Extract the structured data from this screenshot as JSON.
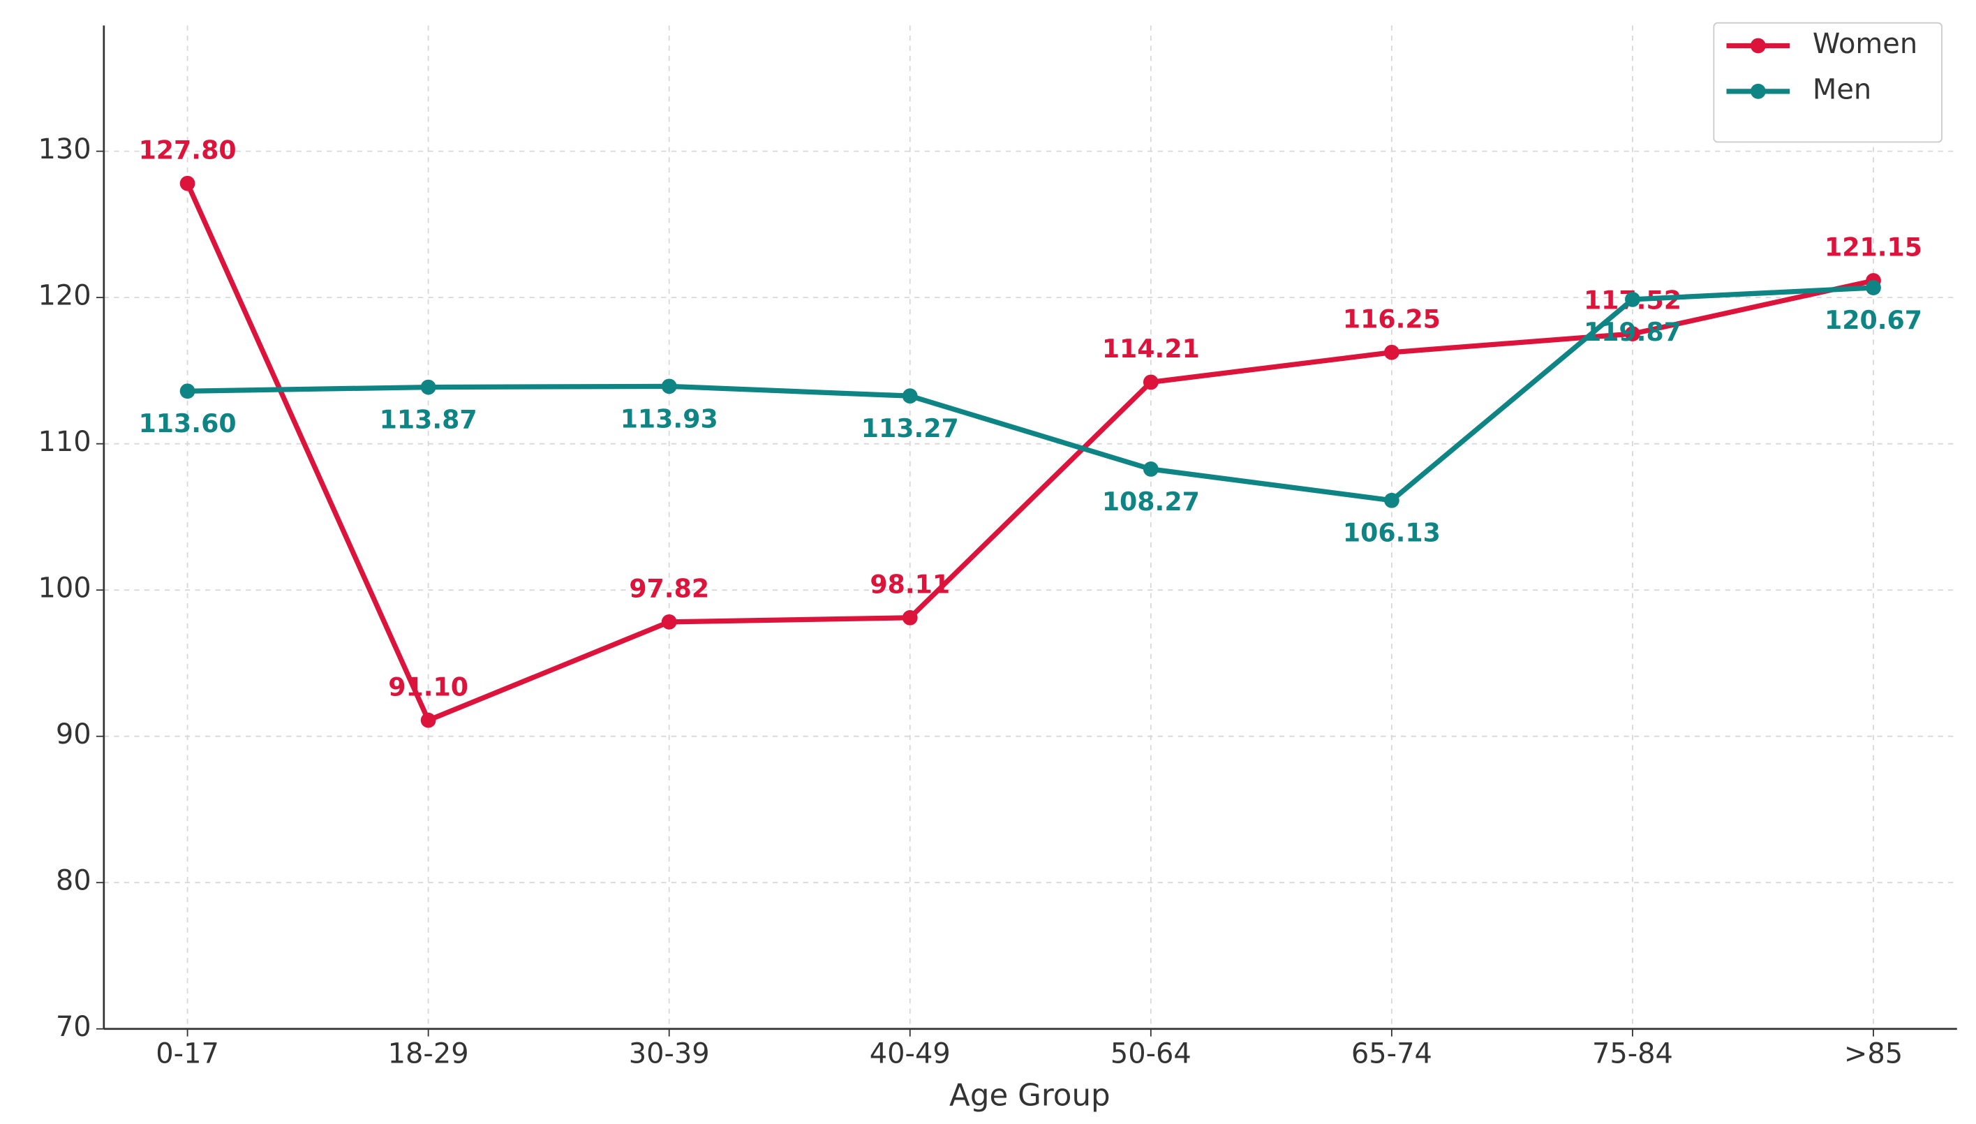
{
  "chart_data": {
    "type": "line",
    "x_label": "Age Group",
    "categories": [
      "0-17",
      "18-29",
      "30-39",
      "40-49",
      "50-64",
      "65-74",
      "75-84",
      ">85"
    ],
    "series": [
      {
        "name": "Women",
        "color": "#dc143c",
        "values": [
          127.8,
          91.1,
          97.82,
          98.11,
          114.21,
          116.25,
          117.52,
          121.15
        ],
        "value_labels": [
          "127.80",
          "91.10",
          "97.82",
          "98.11",
          "114.21",
          "116.25",
          "117.52",
          "121.15"
        ]
      },
      {
        "name": "Men",
        "color": "#0e8584",
        "values": [
          113.6,
          113.87,
          113.93,
          113.27,
          108.27,
          106.13,
          119.87,
          120.67
        ],
        "value_labels": [
          "113.60",
          "113.87",
          "113.93",
          "113.27",
          "108.27",
          "106.13",
          "119.87",
          "120.67"
        ]
      }
    ],
    "ylim": [
      70,
      138.6
    ],
    "yticks": [
      70,
      80,
      90,
      100,
      110,
      120,
      130
    ],
    "grid": true,
    "legend": "upper right"
  }
}
